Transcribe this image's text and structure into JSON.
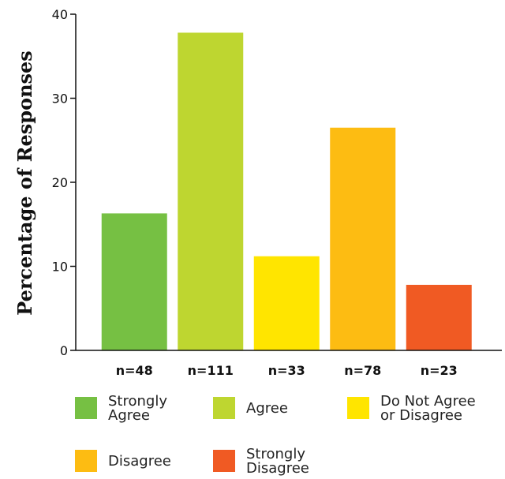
{
  "chart_data": {
    "type": "bar",
    "categories": [
      "Strongly Agree",
      "Agree",
      "Do Not Agree or Disagree",
      "Disagree",
      "Strongly Disagree"
    ],
    "values": [
      16.3,
      37.8,
      11.2,
      26.5,
      7.8
    ],
    "counts": [
      "n=48",
      "n=111",
      "n=33",
      "n=78",
      "n=23"
    ],
    "colors": [
      "#76c043",
      "#bed630",
      "#ffe500",
      "#fdbc12",
      "#f05a23"
    ],
    "ylabel": "Percentage of Responses",
    "ylim": [
      0,
      40
    ],
    "yticks": [
      0,
      10,
      20,
      30,
      40
    ],
    "grid": false,
    "legend": {
      "placement": "bottom",
      "items": [
        {
          "lines": [
            "Strongly",
            "Agree"
          ],
          "color": "#76c043"
        },
        {
          "lines": [
            "Agree"
          ],
          "color": "#bed630"
        },
        {
          "lines": [
            "Do Not Agree",
            "or Disagree"
          ],
          "color": "#ffe500"
        },
        {
          "lines": [
            "Disagree"
          ],
          "color": "#fdbc12"
        },
        {
          "lines": [
            "Strongly",
            "Disagree"
          ],
          "color": "#f05a23"
        }
      ]
    }
  }
}
